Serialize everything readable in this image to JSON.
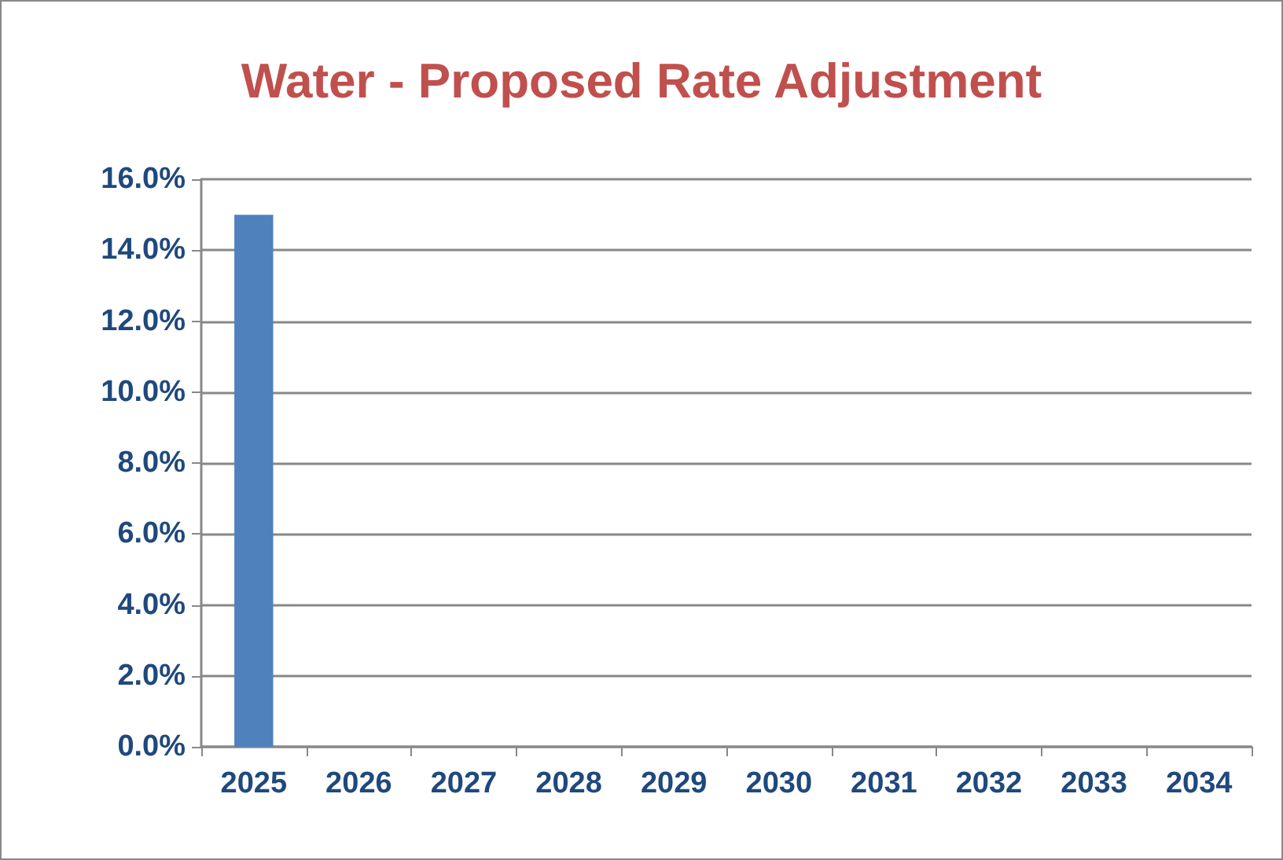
{
  "chart_data": {
    "type": "bar",
    "title": "Water - Proposed Rate Adjustment",
    "categories": [
      "2025",
      "2026",
      "2027",
      "2028",
      "2029",
      "2030",
      "2031",
      "2032",
      "2033",
      "2034"
    ],
    "values": [
      15,
      0,
      0,
      0,
      0,
      0,
      0,
      0,
      0,
      0
    ],
    "color": "#4f81bd",
    "ylim": [
      0,
      16
    ],
    "yticks": [
      {
        "value": 0,
        "label": "0.0%"
      },
      {
        "value": 2,
        "label": "2.0%"
      },
      {
        "value": 4,
        "label": "4.0%"
      },
      {
        "value": 6,
        "label": "6.0%"
      },
      {
        "value": 8,
        "label": "8.0%"
      },
      {
        "value": 10,
        "label": "10.0%"
      },
      {
        "value": 12,
        "label": "12.0%"
      },
      {
        "value": 14,
        "label": "14.0%"
      },
      {
        "value": 16,
        "label": "16.0%"
      }
    ],
    "grid": "y"
  }
}
